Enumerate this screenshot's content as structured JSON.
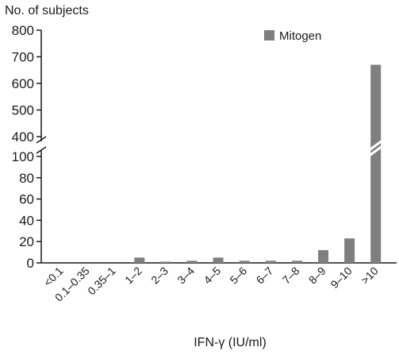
{
  "chart_data": {
    "type": "bar",
    "ylabel": "No. of subjects",
    "xlabel": "IFN-γ (IU/ml)",
    "axis_break": {
      "from": 100,
      "to": 400
    },
    "ylim_lower": [
      0,
      100
    ],
    "ylim_upper": [
      400,
      800
    ],
    "yticks_lower": [
      "0",
      "20",
      "40",
      "60",
      "80",
      "100"
    ],
    "yticks_upper": [
      "400",
      "500",
      "600",
      "700",
      "800"
    ],
    "categories": [
      "<0.1",
      "0.1–0.35",
      "0.35–1",
      "1–2",
      "2–3",
      "3–4",
      "4–5",
      "5–6",
      "6–7",
      "7–8",
      "8–9",
      "9–10",
      ">10"
    ],
    "series": [
      {
        "name": "Mitogen",
        "color": "#7f7f7f",
        "values": [
          0,
          0,
          0,
          5,
          1,
          2,
          5,
          2,
          2,
          2,
          12,
          23,
          670
        ]
      }
    ],
    "legend_position": "top-right",
    "grid": false
  }
}
